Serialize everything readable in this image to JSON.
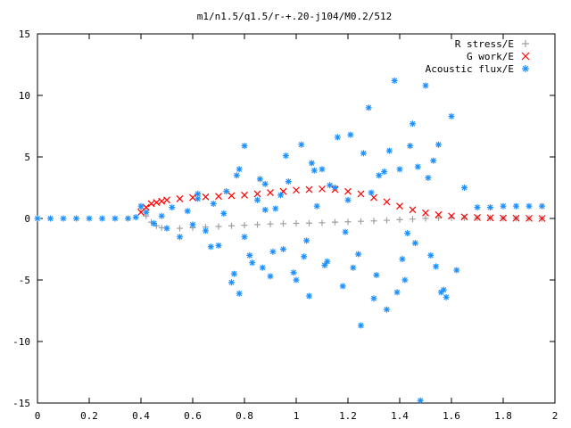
{
  "chart_data": {
    "type": "scatter",
    "title": "m1/n1.5/q1.5/r-+.20-j104/M0.2/512",
    "xlabel": "",
    "ylabel": "",
    "xlim": [
      0,
      2
    ],
    "ylim": [
      -15,
      15
    ],
    "x_ticks": [
      0,
      0.2,
      0.4,
      0.6,
      0.8,
      1,
      1.2,
      1.4,
      1.6,
      1.8,
      2
    ],
    "y_ticks": [
      15,
      10,
      5,
      0,
      -5,
      -10,
      -15
    ],
    "grid": false,
    "legend_position": "top-right",
    "series": [
      {
        "name": "R stress/E",
        "marker": "plus",
        "color": "#a0a0a0",
        "x": [
          0.4,
          0.42,
          0.44,
          0.46,
          0.48,
          0.5,
          0.55,
          0.6,
          0.65,
          0.7,
          0.75,
          0.8,
          0.85,
          0.9,
          0.95,
          1.0,
          1.05,
          1.1,
          1.15,
          1.2,
          1.25,
          1.3,
          1.35,
          1.4,
          1.45,
          1.5,
          1.55,
          1.6,
          1.65,
          1.7,
          1.75,
          1.8,
          1.85,
          1.9,
          1.95
        ],
        "y": [
          0.8,
          0.2,
          -0.3,
          -0.6,
          -0.75,
          -0.8,
          -0.8,
          -0.75,
          -0.7,
          -0.65,
          -0.6,
          -0.55,
          -0.5,
          -0.45,
          -0.42,
          -0.4,
          -0.38,
          -0.35,
          -0.3,
          -0.27,
          -0.23,
          -0.2,
          -0.15,
          -0.1,
          -0.05,
          0.0,
          0.03,
          0.05,
          0.05,
          0.04,
          0.03,
          0.02,
          0.01,
          0.0,
          0.0
        ]
      },
      {
        "name": "G work/E",
        "marker": "cross",
        "color": "#ff0000",
        "x": [
          0.4,
          0.42,
          0.44,
          0.46,
          0.48,
          0.5,
          0.55,
          0.6,
          0.65,
          0.7,
          0.75,
          0.8,
          0.85,
          0.9,
          0.95,
          1.0,
          1.05,
          1.1,
          1.15,
          1.2,
          1.25,
          1.3,
          1.35,
          1.4,
          1.45,
          1.5,
          1.55,
          1.6,
          1.65,
          1.7,
          1.75,
          1.8,
          1.85,
          1.9,
          1.95
        ],
        "y": [
          0.5,
          0.9,
          1.2,
          1.3,
          1.4,
          1.5,
          1.6,
          1.7,
          1.75,
          1.8,
          1.85,
          1.9,
          2.0,
          2.1,
          2.2,
          2.3,
          2.35,
          2.4,
          2.35,
          2.2,
          2.0,
          1.7,
          1.35,
          1.0,
          0.7,
          0.45,
          0.3,
          0.2,
          0.12,
          0.08,
          0.05,
          0.03,
          0.02,
          0.01,
          0.0
        ]
      },
      {
        "name": "Acoustic flux/E",
        "marker": "star",
        "color": "#1e90ff",
        "x": [
          0.0,
          0.05,
          0.1,
          0.15,
          0.2,
          0.25,
          0.3,
          0.35,
          0.38,
          0.4,
          0.42,
          0.45,
          0.48,
          0.5,
          0.52,
          0.55,
          0.58,
          0.6,
          0.62,
          0.65,
          0.68,
          0.7,
          0.72,
          0.75,
          0.77,
          0.78,
          0.8,
          0.82,
          0.85,
          0.87,
          0.88,
          0.9,
          0.92,
          0.95,
          0.97,
          1.0,
          1.02,
          1.05,
          1.08,
          1.1,
          1.12,
          1.15,
          1.18,
          1.2,
          1.22,
          1.25,
          1.28,
          1.3,
          1.32,
          1.35,
          1.38,
          1.4,
          1.42,
          1.45,
          1.48,
          1.5,
          1.52,
          1.55,
          1.58,
          1.6,
          1.62,
          1.65,
          1.7,
          1.75,
          1.8,
          1.85,
          1.9,
          1.95,
          0.76,
          0.78,
          0.8,
          0.86,
          0.91,
          0.96,
          1.04,
          1.06,
          1.11,
          1.16,
          1.24,
          1.26,
          1.31,
          1.34,
          1.41,
          1.44,
          1.46,
          1.53,
          1.56,
          0.73,
          0.83,
          0.94,
          1.03,
          1.13,
          1.21,
          1.36,
          1.43,
          1.51,
          1.57,
          0.62,
          0.67,
          0.88,
          0.99,
          1.07,
          1.19,
          1.29,
          1.39,
          1.47,
          1.54
        ],
        "y": [
          0.0,
          0.0,
          0.0,
          0.0,
          0.0,
          0.0,
          0.0,
          0.0,
          0.1,
          1.0,
          0.5,
          -0.4,
          0.2,
          -0.8,
          0.9,
          -1.5,
          0.6,
          -0.5,
          2.0,
          -1.0,
          1.2,
          -2.2,
          0.4,
          -5.2,
          3.5,
          -6.1,
          5.9,
          -3.0,
          1.5,
          -4.0,
          2.8,
          -4.7,
          0.8,
          -2.5,
          3.0,
          -5.0,
          6.0,
          -6.3,
          1.0,
          4.0,
          -3.5,
          2.5,
          -5.5,
          1.5,
          -4.0,
          -8.7,
          9.0,
          -6.5,
          3.5,
          -7.4,
          11.2,
          4.0,
          -5.0,
          7.7,
          -14.8,
          10.8,
          -3.0,
          6.0,
          -6.4,
          8.3,
          -4.2,
          2.5,
          0.9,
          0.9,
          1.0,
          1.0,
          1.0,
          1.0,
          -4.5,
          4.0,
          -1.5,
          3.2,
          -2.7,
          5.1,
          -1.8,
          4.5,
          -3.8,
          6.6,
          -2.9,
          5.3,
          -4.6,
          3.8,
          -3.3,
          5.9,
          -2.0,
          4.7,
          -6.0,
          2.2,
          -3.6,
          1.9,
          -3.1,
          2.7,
          6.8,
          5.5,
          -1.2,
          3.3,
          -5.8,
          1.6,
          -2.3,
          0.7,
          -4.4,
          3.9,
          -1.1,
          2.1,
          -6.0,
          4.2,
          -3.9
        ]
      }
    ]
  }
}
